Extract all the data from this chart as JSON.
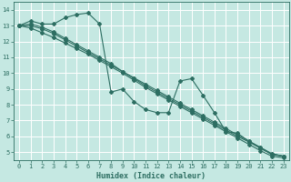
{
  "xlabel": "Humidex (Indice chaleur)",
  "bg_color": "#c5e8e2",
  "grid_color": "#ffffff",
  "line_color": "#2d6e62",
  "xlim": [
    -0.5,
    23.5
  ],
  "ylim": [
    4.5,
    14.5
  ],
  "xticks": [
    0,
    1,
    2,
    3,
    4,
    5,
    6,
    7,
    8,
    9,
    10,
    11,
    12,
    13,
    14,
    15,
    16,
    17,
    18,
    19,
    20,
    21,
    22,
    23
  ],
  "yticks": [
    5,
    6,
    7,
    8,
    9,
    10,
    11,
    12,
    13,
    14
  ],
  "series": [
    {
      "x": [
        0,
        1,
        2,
        3,
        4,
        5,
        6,
        7,
        8,
        9,
        10,
        11,
        12,
        13,
        14,
        15,
        16,
        17,
        18,
        19,
        20,
        21,
        22,
        23
      ],
      "y": [
        13.0,
        13.3,
        13.1,
        13.1,
        13.5,
        13.7,
        13.8,
        13.1,
        8.8,
        9.0,
        8.2,
        7.7,
        7.5,
        7.5,
        9.5,
        9.65,
        8.6,
        7.5,
        6.3,
        6.2,
        5.7,
        5.3,
        4.9,
        4.75
      ]
    },
    {
      "x": [
        0,
        1,
        2,
        3,
        4,
        5,
        6,
        7,
        8,
        9,
        10,
        11,
        12,
        13,
        14,
        15,
        16,
        17,
        18,
        19,
        20,
        21,
        22,
        23
      ],
      "y": [
        13.0,
        13.0,
        12.8,
        12.5,
        12.1,
        11.7,
        11.3,
        10.9,
        10.5,
        10.1,
        9.7,
        9.3,
        8.9,
        8.5,
        8.1,
        7.7,
        7.3,
        6.9,
        6.5,
        6.1,
        5.7,
        5.3,
        4.9,
        4.75
      ]
    },
    {
      "x": [
        0,
        1,
        2,
        3,
        4,
        5,
        6,
        7,
        8,
        9,
        10,
        11,
        12,
        13,
        14,
        15,
        16,
        17,
        18,
        19,
        20,
        21,
        22,
        23
      ],
      "y": [
        13.0,
        13.1,
        12.9,
        12.6,
        12.2,
        11.8,
        11.4,
        11.0,
        10.6,
        10.1,
        9.65,
        9.2,
        8.8,
        8.4,
        8.0,
        7.6,
        7.2,
        6.8,
        6.4,
        6.0,
        5.65,
        5.25,
        4.85,
        4.75
      ]
    },
    {
      "x": [
        0,
        1,
        2,
        3,
        4,
        5,
        6,
        7,
        8,
        9,
        10,
        11,
        12,
        13,
        14,
        15,
        16,
        17,
        18,
        19,
        20,
        21,
        22,
        23
      ],
      "y": [
        13.0,
        12.85,
        12.55,
        12.25,
        11.9,
        11.55,
        11.2,
        10.8,
        10.4,
        10.0,
        9.55,
        9.1,
        8.7,
        8.3,
        7.9,
        7.5,
        7.1,
        6.7,
        6.3,
        5.9,
        5.5,
        5.1,
        4.75,
        4.65
      ]
    }
  ]
}
